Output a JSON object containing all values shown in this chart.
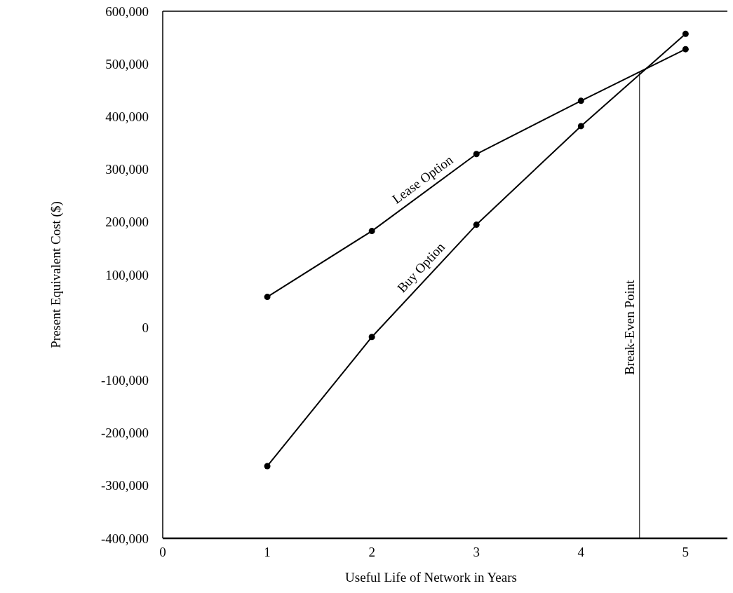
{
  "chart_data": {
    "type": "line",
    "xlabel": "Useful Life of Network in Years",
    "ylabel": "Present Equivalent  Cost ($)",
    "x": [
      1,
      2,
      3,
      4,
      5
    ],
    "series": [
      {
        "name": "Lease Option",
        "color": "#000000",
        "values": [
          58000,
          183000,
          329000,
          430000,
          528000
        ]
      },
      {
        "name": "Buy Option",
        "color": "#000000",
        "values": [
          -263000,
          -18000,
          195000,
          382000,
          557000
        ]
      }
    ],
    "xlim": [
      0,
      5.4
    ],
    "xticks": [
      0,
      1,
      2,
      3,
      4,
      5
    ],
    "ylim": [
      -400000,
      600000
    ],
    "yticks": [
      {
        "value": 600000,
        "label": "600,000"
      },
      {
        "value": 500000,
        "label": "500,000"
      },
      {
        "value": 400000,
        "label": "400,000"
      },
      {
        "value": 300000,
        "label": "300,000"
      },
      {
        "value": 200000,
        "label": "200,000"
      },
      {
        "value": 100000,
        "label": "100,000"
      },
      0,
      {
        "value": -100000,
        "label": "-100,000"
      },
      {
        "value": -200000,
        "label": "-200,000"
      },
      {
        "value": -300000,
        "label": "-300,000"
      },
      {
        "value": -400000,
        "label": "-400,000"
      }
    ],
    "ref_lines": [
      {
        "axis": "x",
        "value": 4.56,
        "label": "Break-Even Point"
      }
    ],
    "marker": "circle",
    "grid": false
  }
}
